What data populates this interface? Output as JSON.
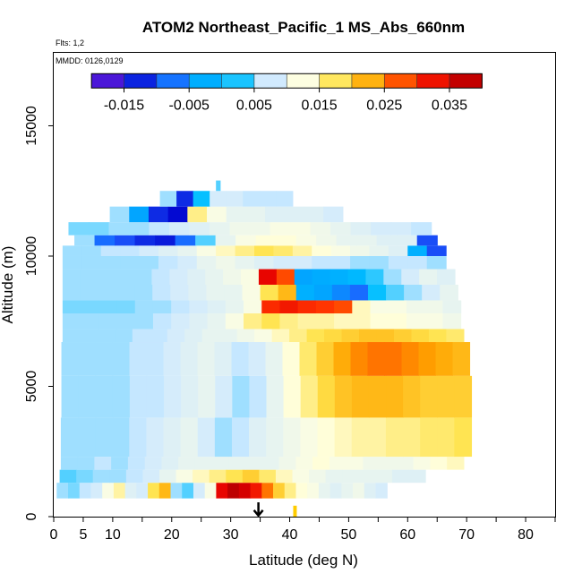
{
  "chart_data": {
    "type": "heatmap",
    "title": "ATOM2 Northeast_Pacific_1 MS_Abs_660nm",
    "annotations": [
      "Flts: 1,2",
      "MMDD: 0126,0129"
    ],
    "xlabel": "Latitude (deg N)",
    "ylabel": "Altitude (m)",
    "xlim": [
      0,
      85
    ],
    "ylim": [
      0,
      17800
    ],
    "x_ticks": [
      0,
      5,
      10,
      20,
      30,
      40,
      50,
      60,
      70,
      80
    ],
    "x_minor_ticks": [
      15,
      25,
      35,
      45,
      55,
      65,
      75,
      85
    ],
    "y_ticks": [
      0,
      5000,
      10000,
      15000
    ],
    "grid": false,
    "legend": "colorbar at top inside plot area",
    "colorbar": {
      "vmin": -0.02,
      "vmax": 0.04,
      "tick_values": [
        -0.015,
        -0.005,
        0.005,
        0.015,
        0.025,
        0.035
      ],
      "tick_labels": [
        "-0.015",
        "-0.005",
        "0.005",
        "0.015",
        "0.025",
        "0.035"
      ],
      "colors": [
        "#8a2be2",
        "#0000cd",
        "#1e5cff",
        "#00aaff",
        "#00bfff",
        "#cfe9ff",
        "#ffffe0",
        "#ffe34d",
        "#ffa500",
        "#ff3300",
        "#e60000",
        "#a50000"
      ]
    },
    "flight_marker_latitude": 34.7,
    "marker_tick_latitude": 40.9,
    "profiles": [
      {
        "alt": [
          700,
          1300
        ],
        "lat": [
          0.5,
          56.5
        ],
        "v": [
          0.006,
          0.005,
          0.007,
          0.008,
          0.012,
          0.015,
          0.009,
          0.008,
          0.018,
          0.022,
          0.006,
          0.004,
          0.008,
          0.012,
          0.034,
          0.038,
          0.036,
          0.032,
          0.026,
          0.02,
          0.016,
          0.013,
          0.012,
          0.01,
          0.009,
          0.01,
          0.011,
          0.009,
          0.008
        ]
      },
      {
        "alt": [
          1300,
          1800
        ],
        "lat": [
          1,
          63
        ],
        "v": [
          0.004,
          0.005,
          0.006,
          0.006,
          0.007,
          0.008,
          0.01,
          0.012,
          0.014,
          0.016,
          0.018,
          0.02,
          0.017,
          0.014,
          0.012,
          0.011,
          0.01,
          0.01,
          0.01,
          0.01,
          0.009,
          0.009
        ]
      },
      {
        "alt": [
          1800,
          2300
        ],
        "lat": [
          1.2,
          69.5
        ],
        "v": [
          0.006,
          0.006,
          0.007,
          0.006,
          0.007,
          0.008,
          0.009,
          0.01,
          0.01,
          0.01,
          0.01,
          0.01,
          0.01,
          0.011,
          0.012,
          0.013,
          0.012,
          0.012,
          0.011,
          0.011,
          0.011,
          0.012,
          0.013,
          0.014
        ]
      },
      {
        "alt": [
          2300,
          3800
        ],
        "lat": [
          1.2,
          70.8
        ],
        "v": [
          0.006,
          0.006,
          0.006,
          0.006,
          0.007,
          0.008,
          0.009,
          0.01,
          0.008,
          0.006,
          0.007,
          0.009,
          0.01,
          0.011,
          0.012,
          0.013,
          0.014,
          0.015,
          0.015,
          0.016,
          0.016,
          0.017,
          0.017,
          0.018
        ]
      },
      {
        "alt": [
          3800,
          5400
        ],
        "lat": [
          1.3,
          70.8
        ],
        "v": [
          0.006,
          0.006,
          0.006,
          0.006,
          0.007,
          0.007,
          0.008,
          0.009,
          0.01,
          0.008,
          0.006,
          0.007,
          0.01,
          0.013,
          0.016,
          0.019,
          0.021,
          0.022,
          0.022,
          0.022,
          0.021,
          0.02,
          0.02,
          0.02
        ]
      },
      {
        "alt": [
          5400,
          6700
        ],
        "lat": [
          1.3,
          70.5
        ],
        "v": [
          0.006,
          0.006,
          0.006,
          0.006,
          0.007,
          0.007,
          0.008,
          0.009,
          0.01,
          0.009,
          0.007,
          0.008,
          0.01,
          0.013,
          0.017,
          0.02,
          0.023,
          0.025,
          0.026,
          0.026,
          0.025,
          0.024,
          0.023,
          0.022
        ]
      },
      {
        "alt": [
          6700,
          7200
        ],
        "lat": [
          1.5,
          69.5
        ],
        "v": [
          0.006,
          0.006,
          0.006,
          0.006,
          0.007,
          0.007,
          0.008,
          0.009,
          0.01,
          0.01,
          0.011,
          0.012,
          0.014,
          0.016,
          0.018,
          0.019,
          0.02,
          0.021,
          0.021,
          0.02,
          0.019,
          0.018,
          0.017
        ]
      },
      {
        "alt": [
          7200,
          7800
        ],
        "lat": [
          1.5,
          69
        ],
        "v": [
          0.006,
          0.006,
          0.006,
          0.006,
          0.006,
          0.007,
          0.008,
          0.009,
          0.01,
          0.012,
          0.016,
          0.018,
          0.016,
          0.015,
          0.015,
          0.014,
          0.014,
          0.013,
          0.013,
          0.012,
          0.012,
          0.011
        ]
      },
      {
        "alt": [
          7800,
          8300
        ],
        "lat": [
          1.5,
          69
        ],
        "v": [
          0.005,
          0.005,
          0.005,
          0.005,
          0.006,
          0.006,
          0.007,
          0.008,
          0.009,
          0.01,
          0.012,
          0.03,
          0.032,
          0.03,
          0.029,
          0.028,
          0.014,
          0.012,
          0.012,
          0.011,
          0.011,
          0.01
        ]
      },
      {
        "alt": [
          8300,
          8900
        ],
        "lat": [
          1.5,
          68.5
        ],
        "v": [
          0.006,
          0.006,
          0.006,
          0.006,
          0.006,
          0.007,
          0.008,
          0.009,
          0.01,
          0.01,
          0.012,
          0.018,
          0.022,
          -0.002,
          -0.004,
          -0.006,
          -0.008,
          0.002,
          0.004,
          0.006,
          0.008,
          0.01
        ]
      },
      {
        "alt": [
          8900,
          9500
        ],
        "lat": [
          1.5,
          68
        ],
        "v": [
          0.006,
          0.006,
          0.006,
          0.006,
          0.006,
          0.007,
          0.008,
          0.009,
          0.01,
          0.011,
          0.012,
          0.034,
          0.028,
          -0.004,
          -0.003,
          -0.002,
          0.0,
          0.003,
          0.006,
          0.008,
          0.01,
          0.009
        ]
      },
      {
        "alt": [
          9500,
          10000
        ],
        "lat": [
          1.5,
          66.5
        ],
        "v": [
          0.006,
          0.006,
          0.006,
          0.006,
          0.006,
          0.007,
          0.008,
          0.01,
          0.011,
          0.01,
          0.009,
          0.008,
          0.008,
          0.007,
          0.007,
          0.006,
          0.006,
          0.007,
          0.007,
          0.006
        ]
      },
      {
        "alt": [
          10000,
          10400
        ],
        "lat": [
          1.5,
          66.5
        ],
        "v": [
          0.006,
          0.006,
          0.007,
          0.007,
          0.008,
          0.009,
          0.01,
          0.012,
          0.014,
          0.016,
          0.018,
          0.017,
          0.015,
          0.013,
          0.012,
          0.011,
          0.01,
          0.009,
          -0.002,
          -0.01
        ]
      },
      {
        "alt": [
          10400,
          10800
        ],
        "lat": [
          3.5,
          65
        ],
        "v": [
          0.006,
          -0.008,
          -0.01,
          -0.012,
          -0.013,
          -0.008,
          0.004,
          0.01,
          0.012,
          0.013,
          0.013,
          0.012,
          0.011,
          0.01,
          0.01,
          0.009,
          0.009,
          -0.01
        ]
      },
      {
        "alt": [
          10800,
          11300
        ],
        "lat": [
          2.5,
          64
        ],
        "v": [
          0.005,
          0.005,
          0.006,
          0.006,
          0.007,
          0.008,
          0.009,
          0.01,
          0.011,
          0.011,
          0.012,
          0.012,
          0.011,
          0.01,
          0.009,
          0.008,
          0.008,
          0.007
        ]
      },
      {
        "alt": [
          11300,
          11900
        ],
        "lat": [
          9.5,
          49
        ],
        "v": [
          0.006,
          -0.004,
          -0.012,
          -0.014,
          0.016,
          0.012,
          0.01,
          0.01,
          0.009,
          0.009,
          0.009,
          0.008
        ]
      },
      {
        "alt": [
          11900,
          12500
        ],
        "lat": [
          18,
          40.5
        ],
        "v": [
          0.006,
          -0.012,
          0.002,
          0.008,
          0.008,
          0.007,
          0.007,
          0.007
        ]
      },
      {
        "alt": [
          12500,
          12900
        ],
        "lat": [
          27.5,
          28.2
        ],
        "v": [
          0.004
        ]
      }
    ]
  }
}
